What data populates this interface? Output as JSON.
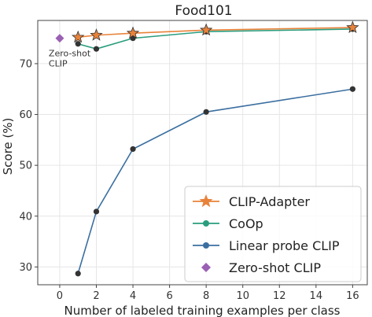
{
  "chart_data": {
    "type": "line",
    "title": "Food101",
    "xlabel": "Number of labeled training examples per class",
    "ylabel": "Score (%)",
    "xlim": [
      -1.2,
      16.8
    ],
    "ylim": [
      26.5,
      78.5
    ],
    "xticks": [
      0,
      2,
      4,
      6,
      8,
      10,
      12,
      14,
      16
    ],
    "yticks": [
      30,
      40,
      50,
      60,
      70
    ],
    "grid": true,
    "legend_position": "lower-right",
    "series": [
      {
        "name": "CLIP-Adapter",
        "marker": "star",
        "color": "#e8823a",
        "x": [
          1,
          2,
          4,
          8,
          16
        ],
        "y": [
          75.2,
          75.6,
          76.0,
          76.6,
          77.1
        ]
      },
      {
        "name": "CoOp",
        "marker": "circle",
        "color": "#2a9d7e",
        "x": [
          1,
          2,
          4,
          8,
          16
        ],
        "y": [
          73.9,
          72.9,
          75.0,
          76.3,
          76.8
        ]
      },
      {
        "name": "Linear probe CLIP",
        "marker": "circle",
        "color": "#3b6fa0",
        "x": [
          1,
          2,
          4,
          8,
          16
        ],
        "y": [
          28.7,
          40.9,
          53.2,
          60.5,
          65.0
        ]
      },
      {
        "name": "Zero-shot CLIP",
        "marker": "diamond",
        "color": "#9a60b4",
        "x": [
          0
        ],
        "y": [
          75.0
        ]
      }
    ],
    "annotations": [
      {
        "text_lines": [
          "Zero-shot",
          "CLIP"
        ],
        "x": 0,
        "y": 75.0
      }
    ]
  }
}
